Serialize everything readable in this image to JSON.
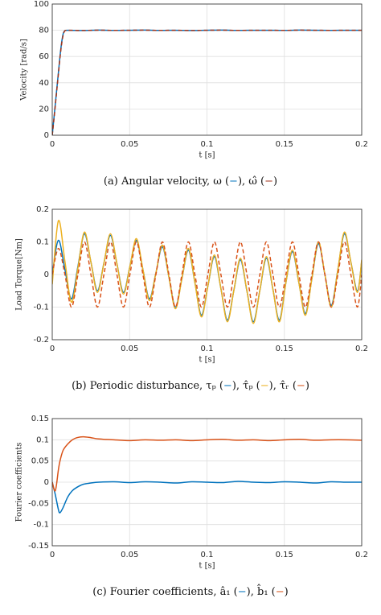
{
  "chart_data": [
    {
      "type": "line",
      "xlabel": "t [s]",
      "ylabel": "Velocity [rad/s]",
      "caption": [
        "(a) Angular velocity, ω (",
        "−",
        "), ω̂ (",
        "−",
        ")"
      ],
      "x": [
        0,
        0.001,
        0.002,
        0.003,
        0.004,
        0.005,
        0.006,
        0.007,
        0.008,
        0.01,
        0.02,
        0.03,
        0.04,
        0.05,
        0.06,
        0.07,
        0.08,
        0.09,
        0.1,
        0.11,
        0.12,
        0.13,
        0.14,
        0.15,
        0.16,
        0.17,
        0.18,
        0.19,
        0.2
      ],
      "series": [
        {
          "color": "#0072bd",
          "dashed": false,
          "values": [
            0,
            12,
            24,
            36,
            48,
            60,
            70,
            77,
            79.5,
            80,
            79.8,
            80.1,
            79.9,
            80,
            80.1,
            79.9,
            80,
            79.8,
            80,
            80.1,
            79.9,
            80,
            80,
            79.9,
            80.1,
            80,
            79.9,
            80,
            80
          ]
        },
        {
          "color": "#a2331a",
          "dashed": true,
          "values": [
            0,
            11,
            23,
            35,
            47,
            59,
            69,
            76,
            79.3,
            80,
            79.8,
            80.1,
            79.9,
            80,
            80.1,
            79.9,
            80,
            79.8,
            80,
            80.1,
            79.9,
            80,
            80,
            79.9,
            80.1,
            80,
            79.9,
            80,
            80
          ]
        }
      ],
      "xlim": [
        0,
        0.2
      ],
      "xticks": [
        0,
        0.05,
        0.1,
        0.15,
        0.2
      ],
      "ylim": [
        0,
        100
      ],
      "yticks": [
        0,
        20,
        40,
        60,
        80,
        100
      ],
      "grid": true
    },
    {
      "type": "line",
      "xlabel": "t [s]",
      "ylabel": "Load Torque[Nm]",
      "caption": [
        "(b) Periodic disturbance, τₚ (",
        "−",
        "), τ̂ₚ (",
        "−",
        "), τ̂ᵣ (",
        "−",
        ")"
      ],
      "x": [
        0,
        0.004,
        0.0082,
        0.0124,
        0.0166,
        0.0208,
        0.025,
        0.0292,
        0.0334,
        0.0376,
        0.0418,
        0.046,
        0.0502,
        0.0544,
        0.0586,
        0.0628,
        0.067,
        0.0712,
        0.0754,
        0.0796,
        0.0838,
        0.088,
        0.0922,
        0.0964,
        0.1006,
        0.1048,
        0.109,
        0.1132,
        0.1174,
        0.1216,
        0.1258,
        0.13,
        0.1342,
        0.1384,
        0.1426,
        0.1468,
        0.151,
        0.1552,
        0.1594,
        0.1636,
        0.1678,
        0.172,
        0.1762,
        0.1804,
        0.1846,
        0.1888,
        0.193,
        0.1972,
        0.2
      ],
      "series": [
        {
          "color": "#0072bd",
          "dashed": false,
          "values": [
            0,
            0.105,
            0.015,
            -0.075,
            0.025,
            0.125,
            0.038,
            -0.05,
            0.035,
            0.12,
            0.033,
            -0.055,
            0.025,
            0.105,
            0.015,
            -0.075,
            0.005,
            0.085,
            -0.008,
            -0.1,
            -0.013,
            0.075,
            -0.025,
            -0.125,
            -0.035,
            0.055,
            -0.043,
            -0.14,
            -0.048,
            0.045,
            -0.05,
            -0.145,
            -0.048,
            0.05,
            -0.045,
            -0.14,
            -0.025,
            0.07,
            -0.025,
            -0.12,
            -0.013,
            0.095,
            0,
            -0.095,
            0.015,
            0.125,
            0.038,
            -0.05,
            0.04
          ]
        },
        {
          "color": "#edb120",
          "dashed": false,
          "values": [
            -0.03,
            0.165,
            0.04,
            -0.085,
            0.02,
            0.13,
            0.038,
            -0.055,
            0.035,
            0.125,
            0.033,
            -0.06,
            0.025,
            0.11,
            0.015,
            -0.08,
            0.005,
            0.09,
            -0.008,
            -0.105,
            -0.013,
            0.08,
            -0.025,
            -0.13,
            -0.035,
            0.06,
            -0.043,
            -0.145,
            -0.048,
            0.05,
            -0.05,
            -0.15,
            -0.048,
            0.055,
            -0.045,
            -0.145,
            -0.025,
            0.075,
            -0.025,
            -0.125,
            -0.013,
            0.1,
            0,
            -0.1,
            0.015,
            0.13,
            0.038,
            -0.055,
            0.045
          ]
        },
        {
          "color": "#d95319",
          "dashed": true,
          "values": [
            0,
            0.08,
            0,
            -0.1,
            0,
            0.1,
            0,
            -0.1,
            0,
            0.1,
            0,
            -0.1,
            0,
            0.1,
            0,
            -0.1,
            0,
            0.1,
            0,
            -0.1,
            0,
            0.1,
            0,
            -0.1,
            0,
            0.1,
            0,
            -0.1,
            0,
            0.1,
            0,
            -0.1,
            0,
            0.1,
            0,
            -0.1,
            0,
            0.1,
            0,
            -0.1,
            0,
            0.1,
            0,
            -0.1,
            0,
            0.1,
            0,
            -0.1,
            0
          ]
        }
      ],
      "xlim": [
        0,
        0.2
      ],
      "xticks": [
        0,
        0.05,
        0.1,
        0.15,
        0.2
      ],
      "ylim": [
        -0.2,
        0.2
      ],
      "yticks": [
        -0.2,
        -0.1,
        0,
        0.1,
        0.2
      ],
      "grid": true
    },
    {
      "type": "line",
      "xlabel": "t [s]",
      "ylabel": "Fourier coefficients",
      "caption": [
        "(c) Fourier coefficients, â₁ (",
        "−",
        "), b̂₁ (",
        "−",
        ")"
      ],
      "x": [
        0,
        0.002,
        0.004,
        0.005,
        0.007,
        0.01,
        0.013,
        0.016,
        0.02,
        0.025,
        0.03,
        0.04,
        0.05,
        0.06,
        0.07,
        0.08,
        0.09,
        0.1,
        0.11,
        0.12,
        0.13,
        0.14,
        0.15,
        0.16,
        0.17,
        0.18,
        0.19,
        0.2
      ],
      "series": [
        {
          "color": "#0072bd",
          "dashed": false,
          "values": [
            0,
            -0.03,
            -0.065,
            -0.072,
            -0.06,
            -0.035,
            -0.02,
            -0.012,
            -0.005,
            -0.002,
            0,
            0.001,
            -0.001,
            0.001,
            0,
            -0.002,
            0.001,
            0,
            -0.001,
            0.002,
            0,
            -0.001,
            0.001,
            0,
            -0.002,
            0.001,
            0,
            0
          ]
        },
        {
          "color": "#d95319",
          "dashed": false,
          "values": [
            0,
            -0.02,
            0.03,
            0.05,
            0.075,
            0.09,
            0.1,
            0.105,
            0.107,
            0.105,
            0.102,
            0.1,
            0.098,
            0.1,
            0.099,
            0.1,
            0.098,
            0.1,
            0.101,
            0.099,
            0.1,
            0.098,
            0.1,
            0.101,
            0.099,
            0.1,
            0.1,
            0.099
          ]
        }
      ],
      "xlim": [
        0,
        0.2
      ],
      "xticks": [
        0,
        0.05,
        0.1,
        0.15,
        0.2
      ],
      "ylim": [
        -0.15,
        0.15
      ],
      "yticks": [
        -0.15,
        -0.1,
        -0.05,
        0,
        0.05,
        0.1,
        0.15
      ],
      "grid": true
    }
  ]
}
